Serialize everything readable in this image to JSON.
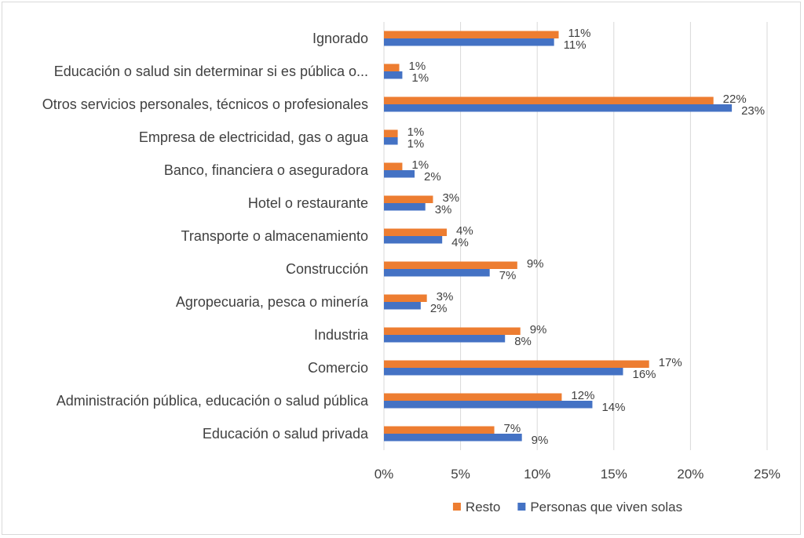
{
  "chart_data": {
    "type": "bar",
    "orientation": "horizontal",
    "categories": [
      "Ignorado",
      "Educación o salud sin determinar si es pública o...",
      "Otros servicios personales, técnicos o profesionales",
      "Empresa de electricidad, gas o agua",
      "Banco, financiera o aseguradora",
      "Hotel o restaurante",
      "Transporte o almacenamiento",
      "Construcción",
      "Agropecuaria, pesca o minería",
      "Industria",
      "Comercio",
      "Administración pública, educación o salud pública",
      "Educación o salud privada"
    ],
    "series": [
      {
        "name": "Resto",
        "color": "#ed7d31",
        "values": [
          11.4,
          1.0,
          21.5,
          0.9,
          1.2,
          3.2,
          4.1,
          8.7,
          2.8,
          8.9,
          17.3,
          11.6,
          7.2
        ],
        "labels": [
          "11%",
          "1%",
          "22%",
          "1%",
          "1%",
          "3%",
          "4%",
          "9%",
          "3%",
          "9%",
          "17%",
          "12%",
          "7%"
        ]
      },
      {
        "name": "Personas que viven solas",
        "color": "#4472c4",
        "values": [
          11.1,
          1.2,
          22.7,
          0.9,
          2.0,
          2.7,
          3.8,
          6.9,
          2.4,
          7.9,
          15.6,
          13.6,
          9.0
        ],
        "labels": [
          "11%",
          "1%",
          "23%",
          "1%",
          "2%",
          "3%",
          "4%",
          "7%",
          "2%",
          "8%",
          "16%",
          "14%",
          "9%"
        ]
      }
    ],
    "xlim": [
      0,
      25
    ],
    "xticks": [
      "0%",
      "5%",
      "10%",
      "15%",
      "20%",
      "25%"
    ],
    "xtick_values": [
      0,
      5,
      10,
      15,
      20,
      25
    ],
    "grid": true,
    "legend": "bottom",
    "gridline_color": "#d9d9d9"
  }
}
